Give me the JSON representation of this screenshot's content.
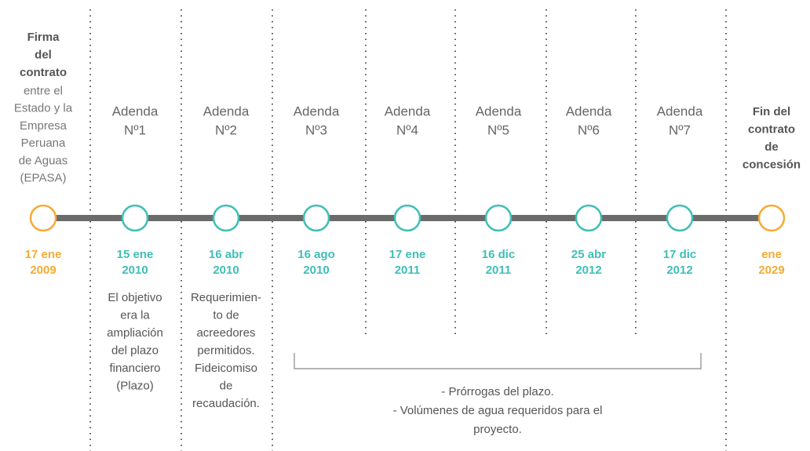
{
  "milestones": [
    {
      "heading": [
        "Firma",
        "del",
        "contrato"
      ],
      "note": [
        "entre el",
        "Estado y la",
        "Empresa",
        "Peruana",
        "de Aguas",
        "(EPASA)"
      ],
      "date": [
        "17 ene",
        "2009"
      ],
      "color": "#f5ab35"
    },
    {
      "heading": [
        "Adenda",
        "Nº1"
      ],
      "date": [
        "15 ene",
        "2010"
      ],
      "description": [
        "El objetivo",
        "era la",
        "ampliación",
        "del plazo",
        "financiero",
        "(Plazo)"
      ],
      "color": "#3fbfb5"
    },
    {
      "heading": [
        "Adenda",
        "Nº2"
      ],
      "date": [
        "16 abr",
        "2010"
      ],
      "description": [
        "Requerimien-",
        "to de",
        "acreedores",
        "permitidos.",
        "Fideicomiso",
        "de",
        "recaudación."
      ],
      "color": "#3fbfb5"
    },
    {
      "heading": [
        "Adenda",
        "Nº3"
      ],
      "date": [
        "16 ago",
        "2010"
      ],
      "color": "#3fbfb5"
    },
    {
      "heading": [
        "Adenda",
        "Nº4"
      ],
      "date": [
        "17 ene",
        "2011"
      ],
      "color": "#3fbfb5"
    },
    {
      "heading": [
        "Adenda",
        "Nº5"
      ],
      "date": [
        "16 dic",
        "2011"
      ],
      "color": "#3fbfb5"
    },
    {
      "heading": [
        "Adenda",
        "Nº6"
      ],
      "date": [
        "25 abr",
        "2012"
      ],
      "color": "#3fbfb5"
    },
    {
      "heading": [
        "Adenda",
        "Nº7"
      ],
      "date": [
        "17 dic",
        "2012"
      ],
      "color": "#3fbfb5"
    },
    {
      "heading": [
        "Fin del",
        "contrato",
        "de",
        "concesión"
      ],
      "date": [
        "ene",
        "2029"
      ],
      "color": "#f5ab35"
    }
  ],
  "group": {
    "description": [
      "- Prórrogas del plazo.",
      "- Volúmenes de agua requeridos para el",
      "proyecto."
    ]
  }
}
